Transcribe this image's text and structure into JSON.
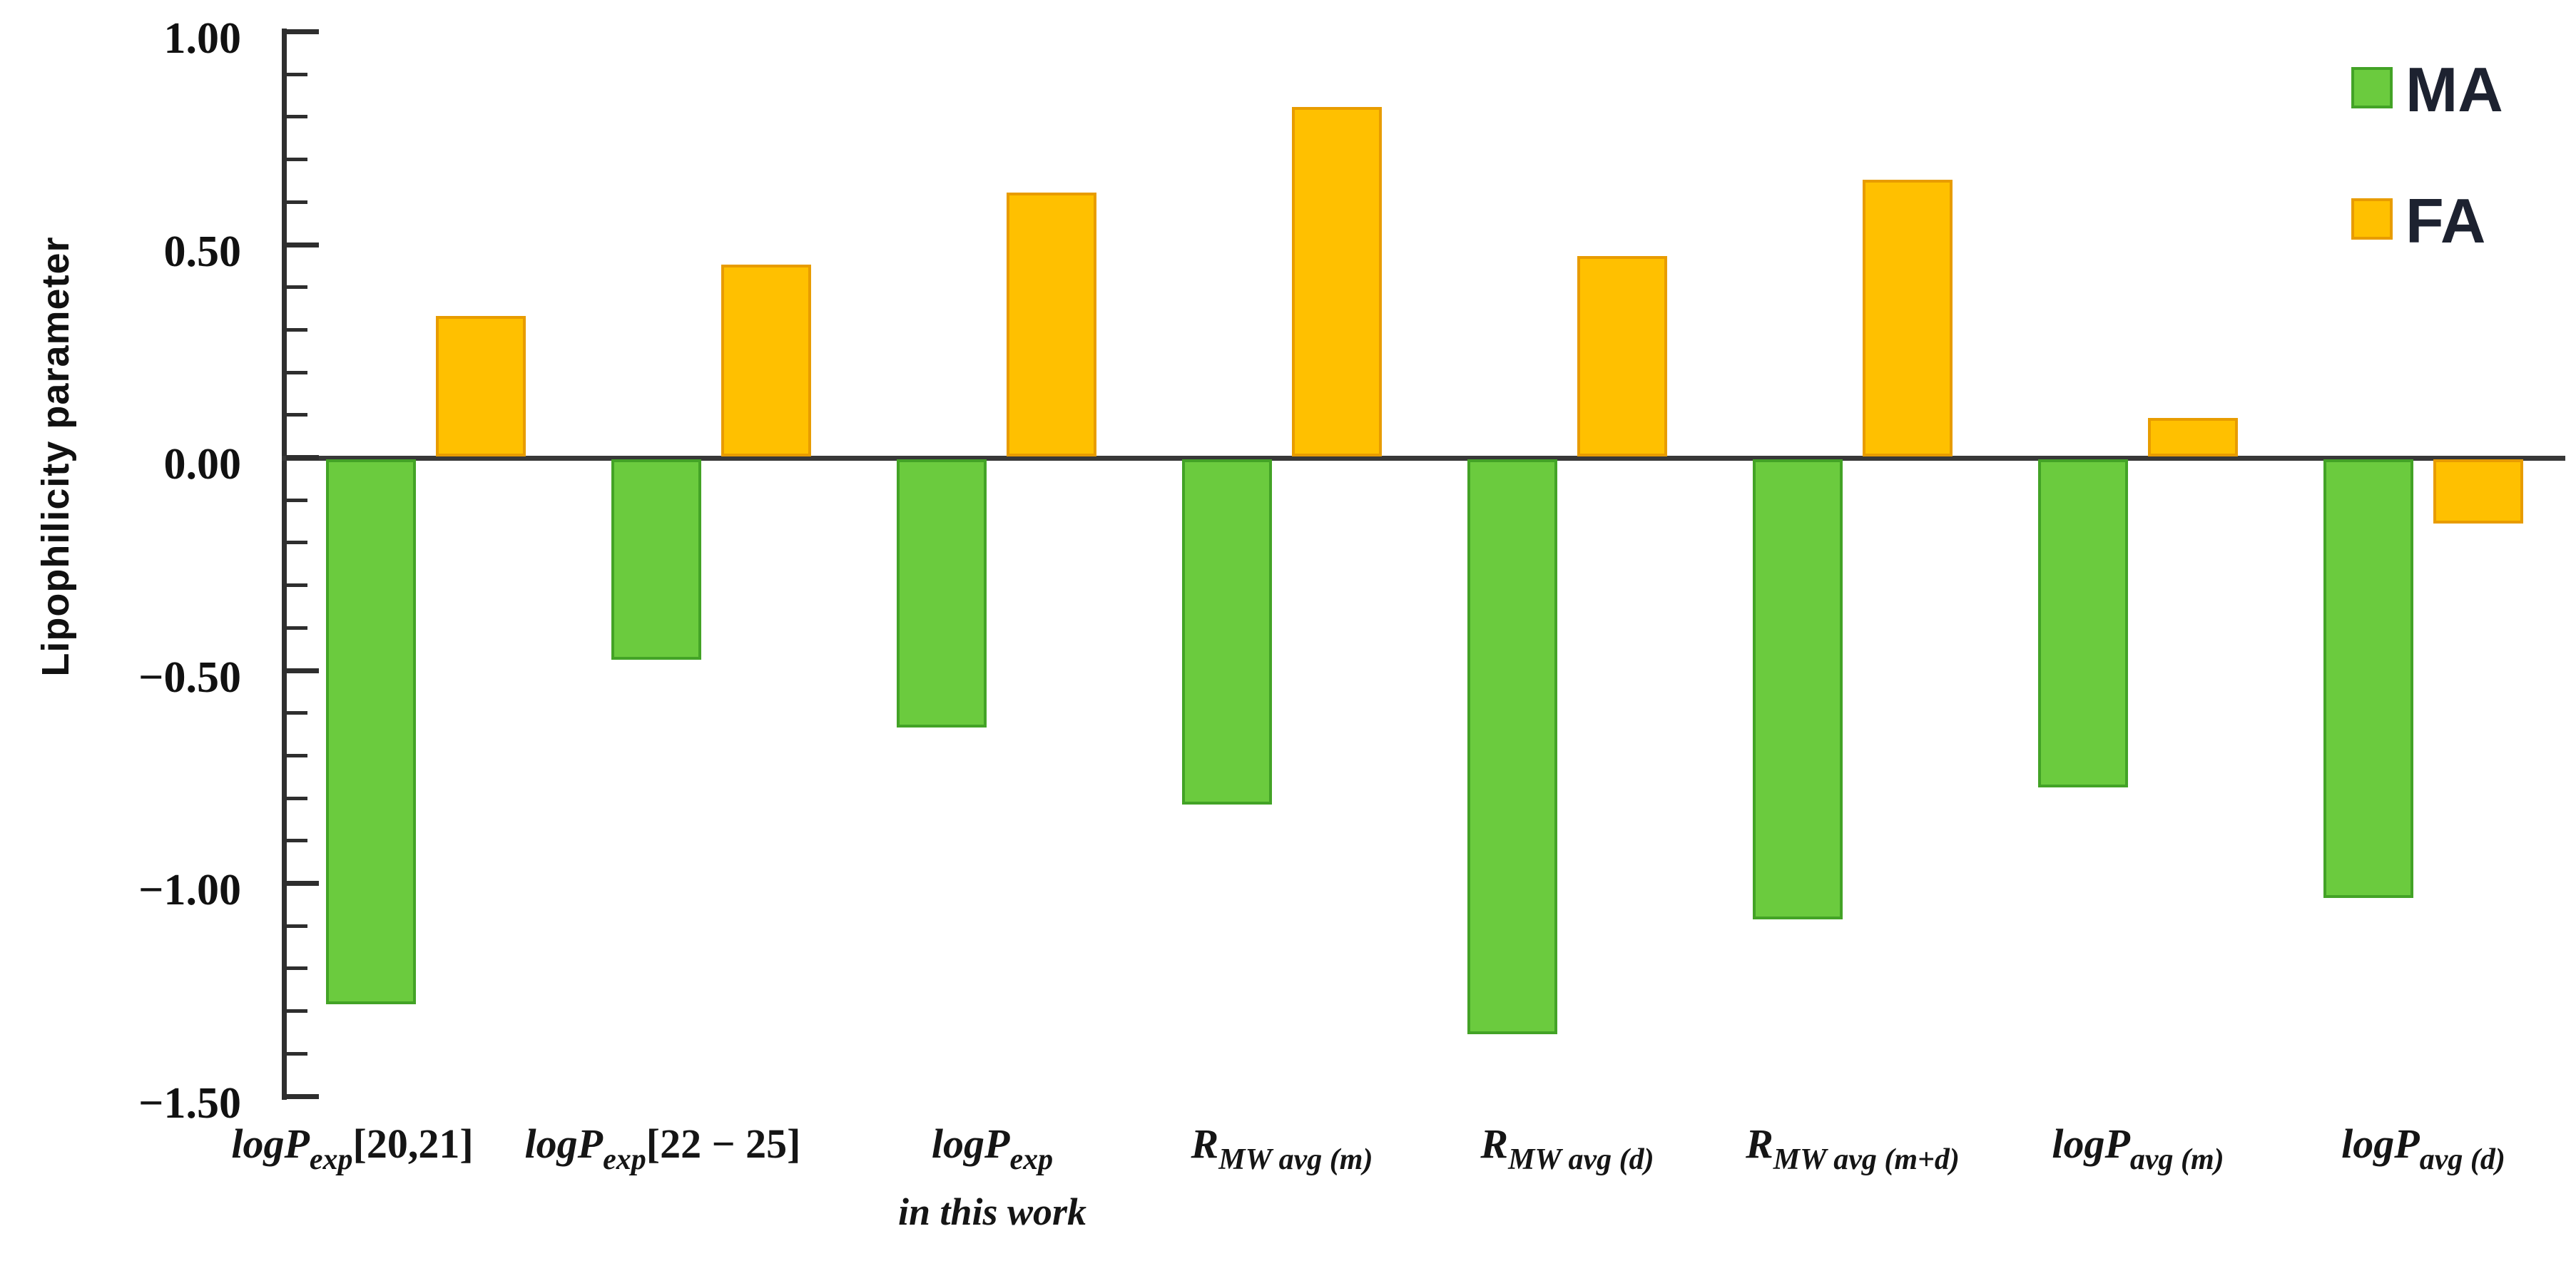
{
  "chart_data": {
    "type": "bar",
    "title": "",
    "ylabel": "Lipophilicity parameter",
    "xlabel": "",
    "ylim": [
      -1.5,
      1.0
    ],
    "grid": false,
    "legend_position": "top-right",
    "minor_tick_step": 0.1,
    "yticks": [
      {
        "value": 1.0,
        "label": "1.00"
      },
      {
        "value": 0.5,
        "label": "0.50"
      },
      {
        "value": 0.0,
        "label": "0.00"
      },
      {
        "value": -0.5,
        "label": "−0.50"
      },
      {
        "value": -1.0,
        "label": "−1.00"
      },
      {
        "value": -1.5,
        "label": "−1.50"
      }
    ],
    "categories": [
      {
        "plain": "logP_exp [20,21]",
        "parts": [
          [
            "logP",
            "it"
          ],
          [
            "exp",
            "sub"
          ],
          [
            "[20,21]",
            "up"
          ]
        ],
        "line2": ""
      },
      {
        "plain": "logP_exp [22 - 25]",
        "parts": [
          [
            "logP",
            "it"
          ],
          [
            "exp",
            "sub"
          ],
          [
            "[22 − 25]",
            "up"
          ]
        ],
        "line2": ""
      },
      {
        "plain": "logP_exp in this work",
        "parts": [
          [
            "logP",
            "it"
          ],
          [
            "exp",
            "sub"
          ]
        ],
        "line2": "in this work"
      },
      {
        "plain": "R_MW avg (m)",
        "parts": [
          [
            "R",
            "it"
          ],
          [
            "MW avg (m)",
            "sub"
          ]
        ],
        "line2": ""
      },
      {
        "plain": "R_MW avg (d)",
        "parts": [
          [
            "R",
            "it"
          ],
          [
            "MW avg (d)",
            "sub"
          ]
        ],
        "line2": ""
      },
      {
        "plain": "R_MW avg (m+d)",
        "parts": [
          [
            "R",
            "it"
          ],
          [
            "MW avg (m+d)",
            "sub"
          ]
        ],
        "line2": ""
      },
      {
        "plain": "logP_avg (m)",
        "parts": [
          [
            "logP",
            "it"
          ],
          [
            "avg (m)",
            "sub"
          ]
        ],
        "line2": ""
      },
      {
        "plain": "logP_avg (d)",
        "parts": [
          [
            "logP",
            "it"
          ],
          [
            "avg (d)",
            "sub"
          ]
        ],
        "line2": ""
      }
    ],
    "series": [
      {
        "name": "MA",
        "color": "#6BCB3E",
        "border_color": "#43A326",
        "values": [
          -1.28,
          -0.47,
          -0.63,
          -0.81,
          -1.35,
          -1.08,
          -0.77,
          -1.03
        ]
      },
      {
        "name": "FA",
        "color": "#FFC000",
        "border_color": "#E89C00",
        "values": [
          0.33,
          0.45,
          0.62,
          0.82,
          0.47,
          0.65,
          0.09,
          -0.15
        ]
      }
    ]
  }
}
